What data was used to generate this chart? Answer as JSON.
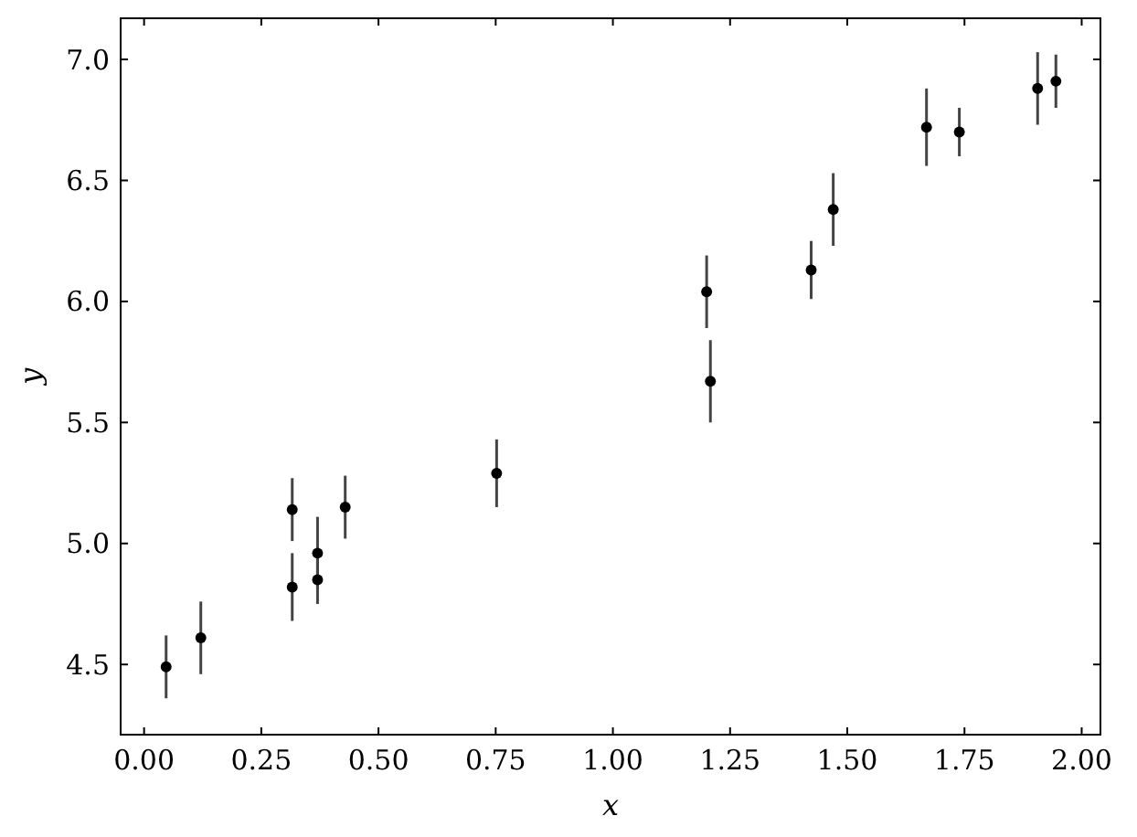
{
  "chart_data": {
    "type": "scatter",
    "xlabel": "x",
    "ylabel": "y",
    "marker": "circle",
    "grid": false,
    "x": [
      0.047,
      0.121,
      0.316,
      0.316,
      0.37,
      0.37,
      0.429,
      0.752,
      1.2,
      1.208,
      1.423,
      1.47,
      1.669,
      1.739,
      1.906,
      1.945
    ],
    "series": [
      {
        "color": "#000000",
        "values": [
          4.49,
          4.61,
          5.14,
          4.82,
          4.96,
          4.85,
          5.15,
          5.29,
          6.04,
          5.67,
          6.13,
          6.38,
          6.72,
          6.7,
          6.88,
          6.91
        ],
        "errors": [
          0.13,
          0.15,
          0.13,
          0.14,
          0.15,
          0.1,
          0.13,
          0.14,
          0.15,
          0.17,
          0.12,
          0.15,
          0.16,
          0.1,
          0.15,
          0.11
        ]
      }
    ],
    "xlim": [
      -0.05,
      2.04
    ],
    "ylim": [
      4.21,
      7.17
    ],
    "xticks": [
      {
        "value": 0,
        "label": "0.00"
      },
      0.25,
      {
        "value": 0.5,
        "label": "0.50"
      },
      0.75,
      {
        "value": 1,
        "label": "1.00"
      },
      1.25,
      {
        "value": 1.5,
        "label": "1.50"
      },
      1.75,
      {
        "value": 2,
        "label": "2.00"
      }
    ],
    "yticks": [
      4.5,
      {
        "value": 5,
        "label": "5.0"
      },
      5.5,
      {
        "value": 6,
        "label": "6.0"
      },
      6.5,
      {
        "value": 7,
        "label": "7.0"
      }
    ]
  }
}
